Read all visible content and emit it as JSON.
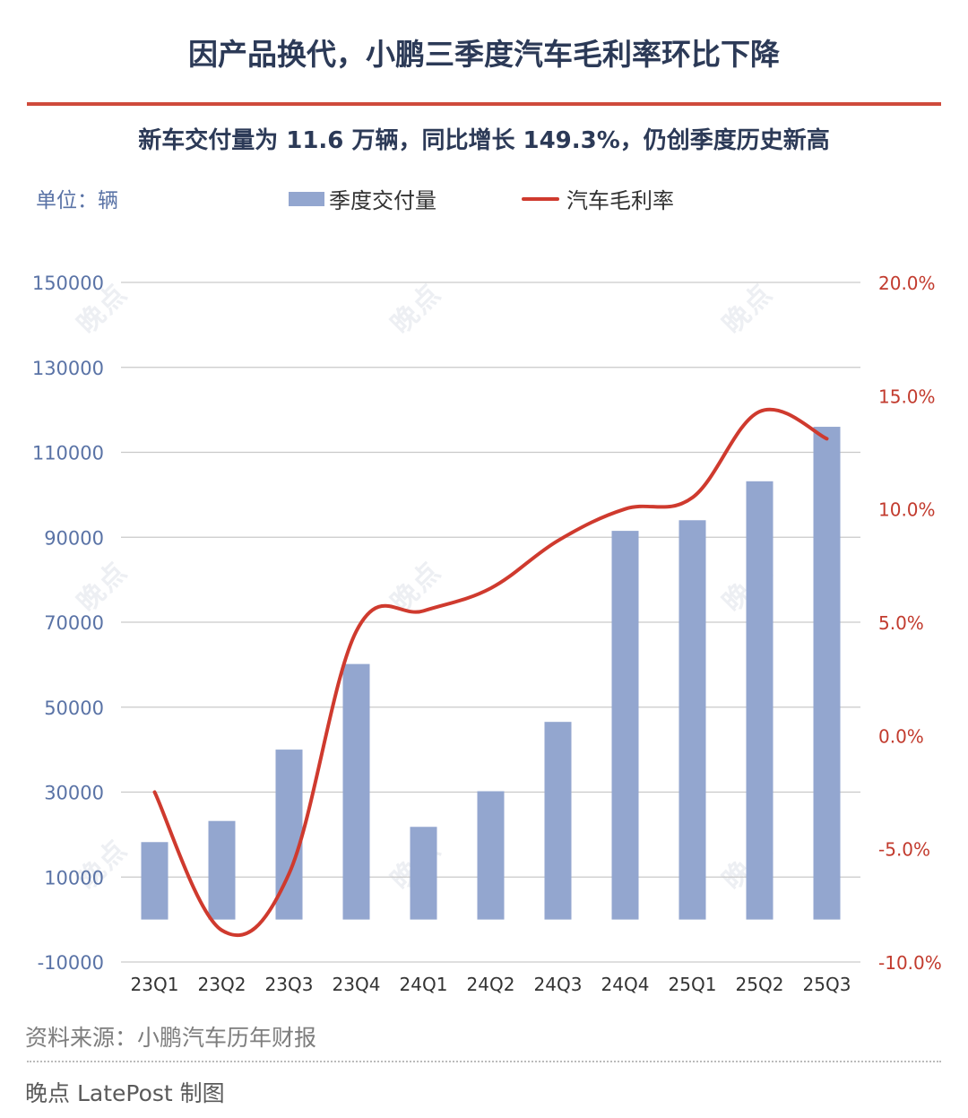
{
  "title": "因产品换代，小鹏三季度汽车毛利率环比下降",
  "subtitle": "新车交付量为 11.6 万辆，同比增长 149.3%，仍创季度历史新高",
  "unit_label": "单位：辆",
  "legend": {
    "bar_label": "季度交付量",
    "line_label": "汽车毛利率"
  },
  "colors": {
    "bar": "#93a6cf",
    "line": "#cf3a2e",
    "left_axis_text": "#5a73a6",
    "right_axis_text": "#c23b2e",
    "title": "#2c3a57",
    "rule": "#cf4a3b"
  },
  "chart_data": {
    "type": "bar+line",
    "categories": [
      "23Q1",
      "23Q2",
      "23Q3",
      "23Q4",
      "24Q1",
      "24Q2",
      "24Q3",
      "24Q4",
      "25Q1",
      "25Q2",
      "25Q3"
    ],
    "series": [
      {
        "name": "季度交付量",
        "type": "bar",
        "axis": "left",
        "values": [
          18230,
          23205,
          40008,
          60158,
          21821,
          30207,
          46533,
          91507,
          94008,
          103181,
          116007
        ]
      },
      {
        "name": "汽车毛利率",
        "type": "line",
        "axis": "right",
        "values": [
          -2.5,
          -8.6,
          -6.1,
          4.6,
          5.5,
          6.5,
          8.6,
          10.0,
          10.5,
          14.3,
          13.1
        ]
      }
    ],
    "left_axis": {
      "min": -10000,
      "max": 150000,
      "ticks": [
        150000,
        130000,
        110000,
        90000,
        70000,
        50000,
        30000,
        10000,
        -10000
      ],
      "tick_labels": [
        "150000",
        "130000",
        "110000",
        "90000",
        "70000",
        "50000",
        "30000",
        "10000",
        "-10000"
      ]
    },
    "right_axis": {
      "min": -10,
      "max": 20,
      "ticks": [
        20,
        15,
        10,
        5,
        0,
        -5,
        -10
      ],
      "tick_labels": [
        "20.0%",
        "15.0%",
        "10.0%",
        "5.0%",
        "0.0%",
        "-5.0%",
        "-10.0%"
      ]
    },
    "grid": true
  },
  "watermark": "晚点",
  "source": "资料来源：小鹏汽车历年财报",
  "credit": "晚点 LatePost 制图"
}
